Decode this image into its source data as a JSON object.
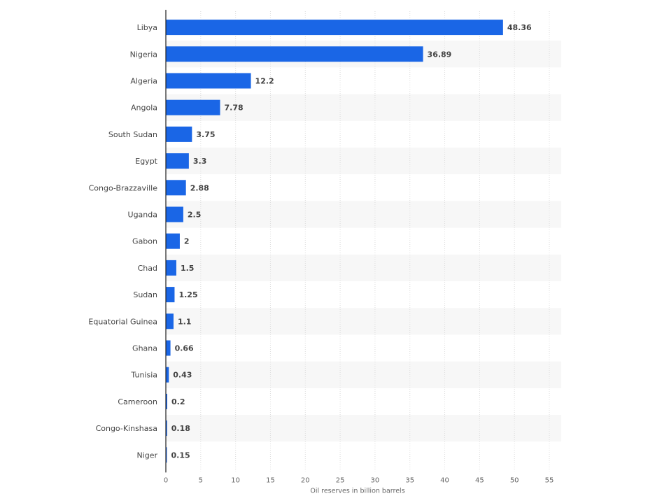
{
  "chart_data": {
    "type": "bar",
    "orientation": "horizontal",
    "categories": [
      "Libya",
      "Nigeria",
      "Algeria",
      "Angola",
      "South Sudan",
      "Egypt",
      "Congo-Brazzaville",
      "Uganda",
      "Gabon",
      "Chad",
      "Sudan",
      "Equatorial Guinea",
      "Ghana",
      "Tunisia",
      "Cameroon",
      "Congo-Kinshasa",
      "Niger"
    ],
    "values": [
      48.36,
      36.89,
      12.2,
      7.78,
      3.75,
      3.3,
      2.88,
      2.5,
      2,
      1.5,
      1.25,
      1.1,
      0.66,
      0.43,
      0.2,
      0.18,
      0.15
    ],
    "value_labels": [
      "48.36",
      "36.89",
      "12.2",
      "7.78",
      "3.75",
      "3.3",
      "2.88",
      "2.5",
      "2",
      "1.5",
      "1.25",
      "1.1",
      "0.66",
      "0.43",
      "0.2",
      "0.18",
      "0.15"
    ],
    "xlabel": "Oil reserves in billion barrels",
    "xlim": [
      0,
      55
    ],
    "xticks": [
      0,
      5,
      10,
      15,
      20,
      25,
      30,
      35,
      40,
      45,
      50,
      55
    ],
    "grid": true,
    "legend": "none",
    "colors": {
      "bar": "#1a66e6",
      "band": "#f7f7f7",
      "grid": "#dcdcdc",
      "axis": "#222222"
    }
  }
}
